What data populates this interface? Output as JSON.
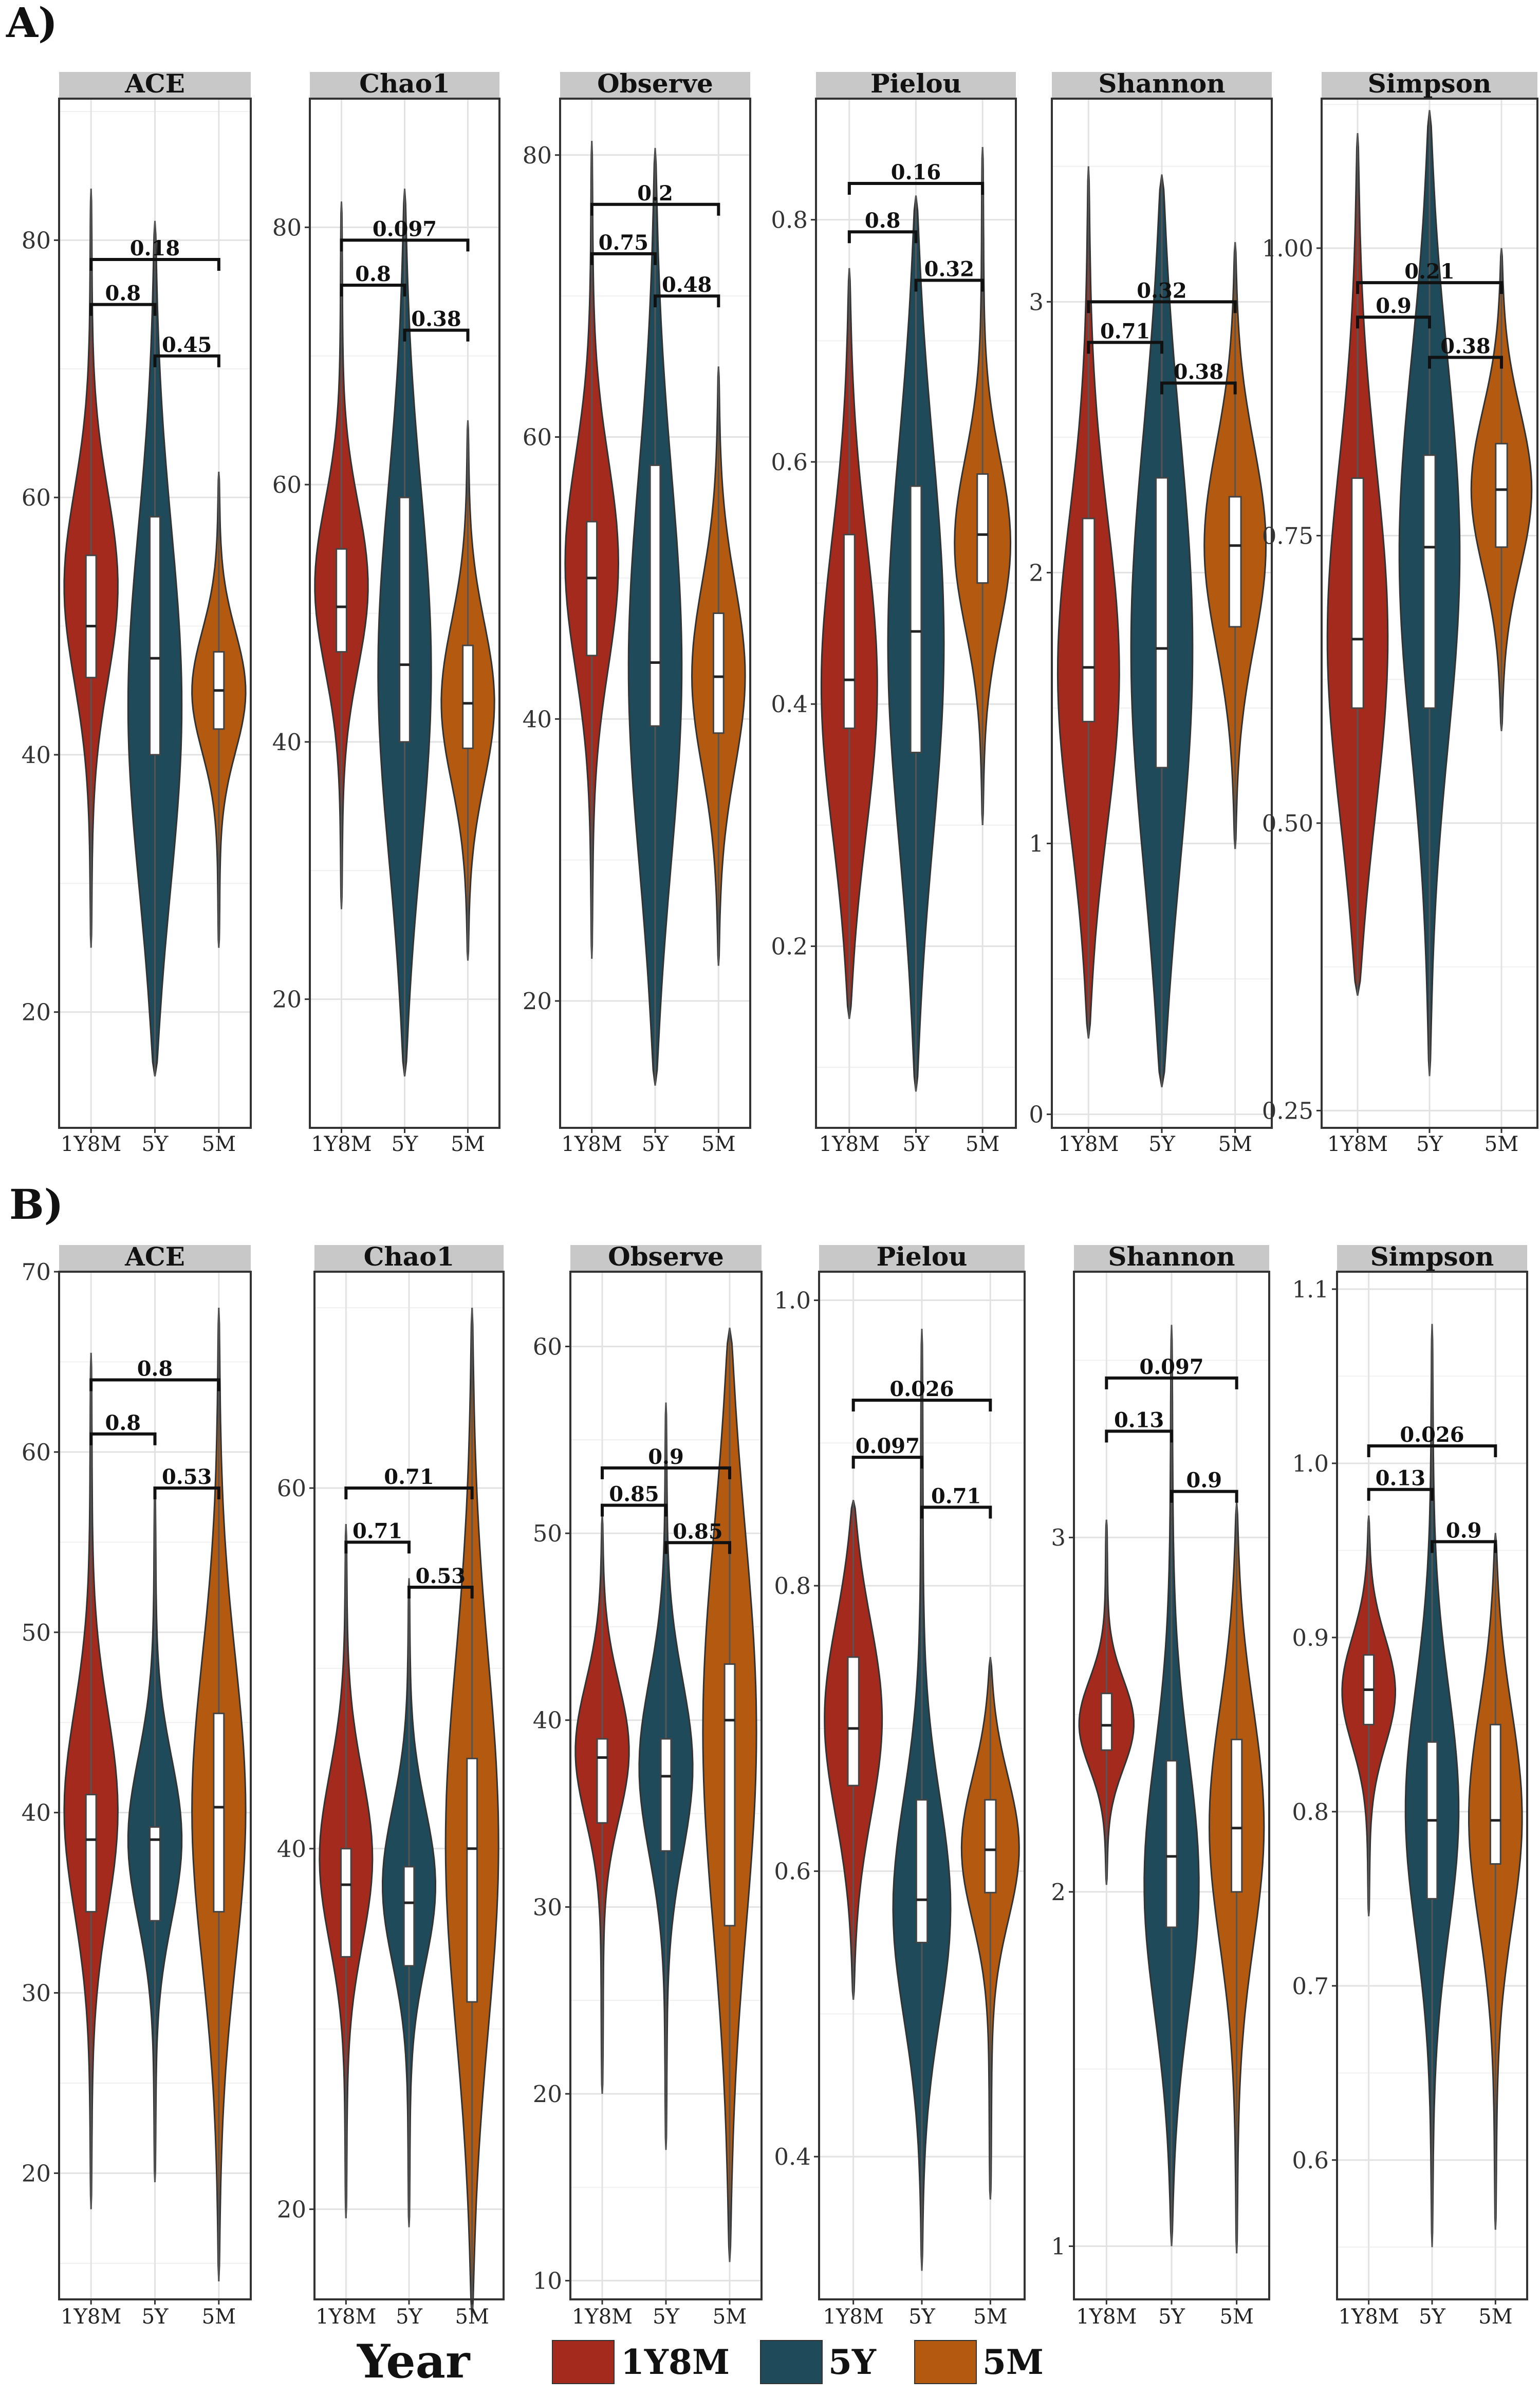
{
  "figure": {
    "sections": [
      {
        "label": "A)"
      },
      {
        "label": "B)"
      }
    ],
    "legend": {
      "title": "Year",
      "entries": [
        {
          "label": "1Y8M",
          "color": "#a52a1e"
        },
        {
          "label": "5Y",
          "color": "#1e4a5a"
        },
        {
          "label": "5M",
          "color": "#b35a10"
        }
      ]
    }
  },
  "chart_data": [
    {
      "type": "violin",
      "section": "A)",
      "title": "ACE",
      "categories": [
        "1Y8M",
        "5Y",
        "5M"
      ],
      "ylim": [
        11,
        91
      ],
      "yticks": [
        20,
        40,
        60,
        80
      ],
      "ytick_labels": [
        "20",
        "40",
        "60",
        "80"
      ],
      "groups": [
        {
          "min": 25,
          "q1": 46,
          "median": 50,
          "q3": 55.5,
          "max": 84,
          "mode": 53
        },
        {
          "min": 15,
          "q1": 40,
          "median": 47.5,
          "q3": 58.5,
          "max": 81.5,
          "mode": 43
        },
        {
          "min": 25,
          "q1": 42,
          "median": 45,
          "q3": 48,
          "max": 62,
          "mode": 45
        }
      ],
      "comparisons": [
        {
          "pair": [
            "1Y8M",
            "5Y"
          ],
          "y": 75,
          "label": "0.8"
        },
        {
          "pair": [
            "5Y",
            "5M"
          ],
          "y": 71,
          "label": "0.45"
        },
        {
          "pair": [
            "1Y8M",
            "5M"
          ],
          "y": 78.5,
          "label": "0.18"
        }
      ],
      "grid": true
    },
    {
      "type": "violin",
      "section": "A)",
      "title": "Chao1",
      "categories": [
        "1Y8M",
        "5Y",
        "5M"
      ],
      "ylim": [
        10,
        90
      ],
      "yticks": [
        20,
        40,
        60,
        80
      ],
      "ytick_labels": [
        "20",
        "40",
        "60",
        "80"
      ],
      "groups": [
        {
          "min": 27,
          "q1": 47,
          "median": 50.5,
          "q3": 55,
          "max": 82,
          "mode": 52
        },
        {
          "min": 14,
          "q1": 40,
          "median": 46,
          "q3": 59,
          "max": 83,
          "mode": 45
        },
        {
          "min": 23,
          "q1": 39.5,
          "median": 43,
          "q3": 47.5,
          "max": 65,
          "mode": 43
        }
      ],
      "comparisons": [
        {
          "pair": [
            "1Y8M",
            "5Y"
          ],
          "y": 75.5,
          "label": "0.8"
        },
        {
          "pair": [
            "5Y",
            "5M"
          ],
          "y": 72,
          "label": "0.38"
        },
        {
          "pair": [
            "1Y8M",
            "5M"
          ],
          "y": 79,
          "label": "0.097"
        }
      ],
      "grid": true
    },
    {
      "type": "violin",
      "section": "A)",
      "title": "Observe",
      "categories": [
        "1Y8M",
        "5Y",
        "5M"
      ],
      "ylim": [
        11,
        84
      ],
      "yticks": [
        20,
        40,
        60,
        80
      ],
      "ytick_labels": [
        "20",
        "40",
        "60",
        "80"
      ],
      "groups": [
        {
          "min": 23,
          "q1": 44.5,
          "median": 50,
          "q3": 54,
          "max": 81,
          "mode": 51
        },
        {
          "min": 14,
          "q1": 39.5,
          "median": 44,
          "q3": 58,
          "max": 80.5,
          "mode": 43
        },
        {
          "min": 22.5,
          "q1": 39,
          "median": 43,
          "q3": 47.5,
          "max": 65,
          "mode": 43
        }
      ],
      "comparisons": [
        {
          "pair": [
            "1Y8M",
            "5Y"
          ],
          "y": 73,
          "label": "0.75"
        },
        {
          "pair": [
            "5Y",
            "5M"
          ],
          "y": 70,
          "label": "0.48"
        },
        {
          "pair": [
            "1Y8M",
            "5M"
          ],
          "y": 76.5,
          "label": "0.2"
        }
      ],
      "grid": true
    },
    {
      "type": "violin",
      "section": "A)",
      "title": "Pielou",
      "categories": [
        "1Y8M",
        "5Y",
        "5M"
      ],
      "ylim": [
        0.05,
        0.9
      ],
      "yticks": [
        0.2,
        0.4,
        0.6,
        0.8
      ],
      "ytick_labels": [
        "0.2",
        "0.4",
        "0.6",
        "0.8"
      ],
      "groups": [
        {
          "min": 0.14,
          "q1": 0.38,
          "median": 0.42,
          "q3": 0.54,
          "max": 0.76,
          "mode": 0.41
        },
        {
          "min": 0.08,
          "q1": 0.36,
          "median": 0.46,
          "q3": 0.58,
          "max": 0.82,
          "mode": 0.45
        },
        {
          "min": 0.3,
          "q1": 0.5,
          "median": 0.54,
          "q3": 0.59,
          "max": 0.86,
          "mode": 0.53
        }
      ],
      "comparisons": [
        {
          "pair": [
            "1Y8M",
            "5Y"
          ],
          "y": 0.79,
          "label": "0.8"
        },
        {
          "pair": [
            "5Y",
            "5M"
          ],
          "y": 0.75,
          "label": "0.32"
        },
        {
          "pair": [
            "1Y8M",
            "5M"
          ],
          "y": 0.83,
          "label": "0.16"
        }
      ],
      "grid": true
    },
    {
      "type": "violin",
      "section": "A)",
      "title": "Shannon",
      "categories": [
        "1Y8M",
        "5Y",
        "5M"
      ],
      "ylim": [
        -0.05,
        3.75
      ],
      "yticks": [
        0,
        1,
        2,
        3
      ],
      "ytick_labels": [
        "0",
        "1",
        "2",
        "3"
      ],
      "groups": [
        {
          "min": 0.28,
          "q1": 1.45,
          "median": 1.65,
          "q3": 2.2,
          "max": 3.5,
          "mode": 1.6
        },
        {
          "min": 0.1,
          "q1": 1.28,
          "median": 1.72,
          "q3": 2.35,
          "max": 3.47,
          "mode": 1.7
        },
        {
          "min": 0.98,
          "q1": 1.8,
          "median": 2.1,
          "q3": 2.28,
          "max": 3.22,
          "mode": 2.1
        }
      ],
      "comparisons": [
        {
          "pair": [
            "1Y8M",
            "5Y"
          ],
          "y": 2.85,
          "label": "0.71"
        },
        {
          "pair": [
            "5Y",
            "5M"
          ],
          "y": 2.7,
          "label": "0.38"
        },
        {
          "pair": [
            "1Y8M",
            "5M"
          ],
          "y": 3.0,
          "label": "0.32"
        }
      ],
      "grid": true
    },
    {
      "type": "violin",
      "section": "A)",
      "title": "Simpson",
      "categories": [
        "1Y8M",
        "5Y",
        "5M"
      ],
      "ylim": [
        0.235,
        1.13
      ],
      "yticks": [
        0.25,
        0.5,
        0.75,
        1.0
      ],
      "ytick_labels": [
        "0.25",
        "0.50",
        "0.75",
        "1.00"
      ],
      "groups": [
        {
          "min": 0.35,
          "q1": 0.6,
          "median": 0.66,
          "q3": 0.8,
          "max": 1.1,
          "mode": 0.65
        },
        {
          "min": 0.28,
          "q1": 0.6,
          "median": 0.74,
          "q3": 0.82,
          "max": 1.12,
          "mode": 0.74
        },
        {
          "min": 0.58,
          "q1": 0.74,
          "median": 0.79,
          "q3": 0.83,
          "max": 1.0,
          "mode": 0.79
        }
      ],
      "comparisons": [
        {
          "pair": [
            "1Y8M",
            "5Y"
          ],
          "y": 0.94,
          "label": "0.9"
        },
        {
          "pair": [
            "5Y",
            "5M"
          ],
          "y": 0.905,
          "label": "0.38"
        },
        {
          "pair": [
            "1Y8M",
            "5M"
          ],
          "y": 0.97,
          "label": "0.21"
        }
      ],
      "grid": true
    },
    {
      "type": "violin",
      "section": "B)",
      "title": "ACE",
      "categories": [
        "1Y8M",
        "5Y",
        "5M"
      ],
      "ylim": [
        13,
        70
      ],
      "yticks": [
        20,
        30,
        40,
        50,
        60,
        70
      ],
      "ytick_labels": [
        "20",
        "30",
        "40",
        "50",
        "60",
        "70"
      ],
      "groups": [
        {
          "min": 18,
          "q1": 34.5,
          "median": 38.5,
          "q3": 41,
          "max": 65.5,
          "mode": 40
        },
        {
          "min": 19.5,
          "q1": 34,
          "median": 38.5,
          "q3": 39.2,
          "max": 58,
          "mode": 38.5
        },
        {
          "min": 14,
          "q1": 34.5,
          "median": 40.3,
          "q3": 45.5,
          "max": 68,
          "mode": 40
        }
      ],
      "comparisons": [
        {
          "pair": [
            "1Y8M",
            "5Y"
          ],
          "y": 61,
          "label": "0.8"
        },
        {
          "pair": [
            "5Y",
            "5M"
          ],
          "y": 58,
          "label": "0.53"
        },
        {
          "pair": [
            "1Y8M",
            "5M"
          ],
          "y": 64,
          "label": "0.8"
        }
      ],
      "grid": true
    },
    {
      "type": "violin",
      "section": "B)",
      "title": "Chao1",
      "categories": [
        "1Y8M",
        "5Y",
        "5M"
      ],
      "ylim": [
        15,
        72
      ],
      "yticks": [
        20,
        40,
        60
      ],
      "ytick_labels": [
        "20",
        "40",
        "60"
      ],
      "groups": [
        {
          "min": 19.5,
          "q1": 34,
          "median": 38,
          "q3": 40,
          "max": 58,
          "mode": 39.5
        },
        {
          "min": 19,
          "q1": 33.5,
          "median": 37,
          "q3": 39,
          "max": 55,
          "mode": 38
        },
        {
          "min": 14,
          "q1": 31.5,
          "median": 40,
          "q3": 45,
          "max": 70,
          "mode": 40
        }
      ],
      "comparisons": [
        {
          "pair": [
            "1Y8M",
            "5Y"
          ],
          "y": 57,
          "label": "0.71"
        },
        {
          "pair": [
            "5Y",
            "5M"
          ],
          "y": 54.5,
          "label": "0.53"
        },
        {
          "pair": [
            "1Y8M",
            "5M"
          ],
          "y": 60,
          "label": "0.71"
        }
      ],
      "grid": true
    },
    {
      "type": "violin",
      "section": "B)",
      "title": "Observe",
      "categories": [
        "1Y8M",
        "5Y",
        "5M"
      ],
      "ylim": [
        9,
        64
      ],
      "yticks": [
        10,
        20,
        30,
        40,
        50,
        60
      ],
      "ytick_labels": [
        "10",
        "20",
        "30",
        "40",
        "50",
        "60"
      ],
      "groups": [
        {
          "min": 20,
          "q1": 34.5,
          "median": 38,
          "q3": 39,
          "max": 51,
          "mode": 38.5
        },
        {
          "min": 17,
          "q1": 33,
          "median": 37,
          "q3": 39,
          "max": 57,
          "mode": 37.5
        },
        {
          "min": 11,
          "q1": 29,
          "median": 40,
          "q3": 43,
          "max": 61,
          "mode": 40
        }
      ],
      "comparisons": [
        {
          "pair": [
            "1Y8M",
            "5Y"
          ],
          "y": 51.5,
          "label": "0.85"
        },
        {
          "pair": [
            "5Y",
            "5M"
          ],
          "y": 49.5,
          "label": "0.85"
        },
        {
          "pair": [
            "1Y8M",
            "5M"
          ],
          "y": 53.5,
          "label": "0.9"
        }
      ],
      "grid": true
    },
    {
      "type": "violin",
      "section": "B)",
      "title": "Pielou",
      "categories": [
        "1Y8M",
        "5Y",
        "5M"
      ],
      "ylim": [
        0.3,
        1.02
      ],
      "yticks": [
        0.4,
        0.6,
        0.8,
        1.0
      ],
      "ytick_labels": [
        "0.4",
        "0.6",
        "0.8",
        "1.0"
      ],
      "groups": [
        {
          "min": 0.51,
          "q1": 0.66,
          "median": 0.7,
          "q3": 0.75,
          "max": 0.86,
          "mode": 0.71
        },
        {
          "min": 0.32,
          "q1": 0.55,
          "median": 0.58,
          "q3": 0.65,
          "max": 0.98,
          "mode": 0.57
        },
        {
          "min": 0.37,
          "q1": 0.585,
          "median": 0.615,
          "q3": 0.65,
          "max": 0.75,
          "mode": 0.62
        }
      ],
      "comparisons": [
        {
          "pair": [
            "1Y8M",
            "5Y"
          ],
          "y": 0.89,
          "label": "0.097"
        },
        {
          "pair": [
            "5Y",
            "5M"
          ],
          "y": 0.855,
          "label": "0.71"
        },
        {
          "pair": [
            "1Y8M",
            "5M"
          ],
          "y": 0.93,
          "label": "0.026"
        }
      ],
      "grid": true
    },
    {
      "type": "violin",
      "section": "B)",
      "title": "Shannon",
      "categories": [
        "1Y8M",
        "5Y",
        "5M"
      ],
      "ylim": [
        0.85,
        3.75
      ],
      "yticks": [
        1,
        2,
        3
      ],
      "ytick_labels": [
        "1",
        "2",
        "3"
      ],
      "groups": [
        {
          "min": 2.02,
          "q1": 2.4,
          "median": 2.47,
          "q3": 2.56,
          "max": 3.05,
          "mode": 2.47
        },
        {
          "min": 1.0,
          "q1": 1.9,
          "median": 2.1,
          "q3": 2.37,
          "max": 3.6,
          "mode": 2.0
        },
        {
          "min": 0.98,
          "q1": 2.0,
          "median": 2.18,
          "q3": 2.43,
          "max": 3.1,
          "mode": 2.2
        }
      ],
      "comparisons": [
        {
          "pair": [
            "1Y8M",
            "5Y"
          ],
          "y": 3.3,
          "label": "0.13"
        },
        {
          "pair": [
            "5Y",
            "5M"
          ],
          "y": 3.13,
          "label": "0.9"
        },
        {
          "pair": [
            "1Y8M",
            "5M"
          ],
          "y": 3.45,
          "label": "0.097"
        }
      ],
      "grid": true
    },
    {
      "type": "violin",
      "section": "B)",
      "title": "Simpson",
      "categories": [
        "1Y8M",
        "5Y",
        "5M"
      ],
      "ylim": [
        0.52,
        1.11
      ],
      "yticks": [
        0.6,
        0.7,
        0.8,
        0.9,
        1.0,
        1.1
      ],
      "ytick_labels": [
        "0.6",
        "0.7",
        "0.8",
        "0.9",
        "1.0",
        "1.1"
      ],
      "groups": [
        {
          "min": 0.74,
          "q1": 0.85,
          "median": 0.87,
          "q3": 0.89,
          "max": 0.97,
          "mode": 0.87
        },
        {
          "min": 0.55,
          "q1": 0.75,
          "median": 0.795,
          "q3": 0.84,
          "max": 1.08,
          "mode": 0.8
        },
        {
          "min": 0.56,
          "q1": 0.77,
          "median": 0.795,
          "q3": 0.85,
          "max": 0.96,
          "mode": 0.8
        }
      ],
      "comparisons": [
        {
          "pair": [
            "1Y8M",
            "5Y"
          ],
          "y": 0.985,
          "label": "0.13"
        },
        {
          "pair": [
            "5Y",
            "5M"
          ],
          "y": 0.955,
          "label": "0.9"
        },
        {
          "pair": [
            "1Y8M",
            "5M"
          ],
          "y": 1.01,
          "label": "0.026"
        }
      ],
      "grid": true
    }
  ]
}
